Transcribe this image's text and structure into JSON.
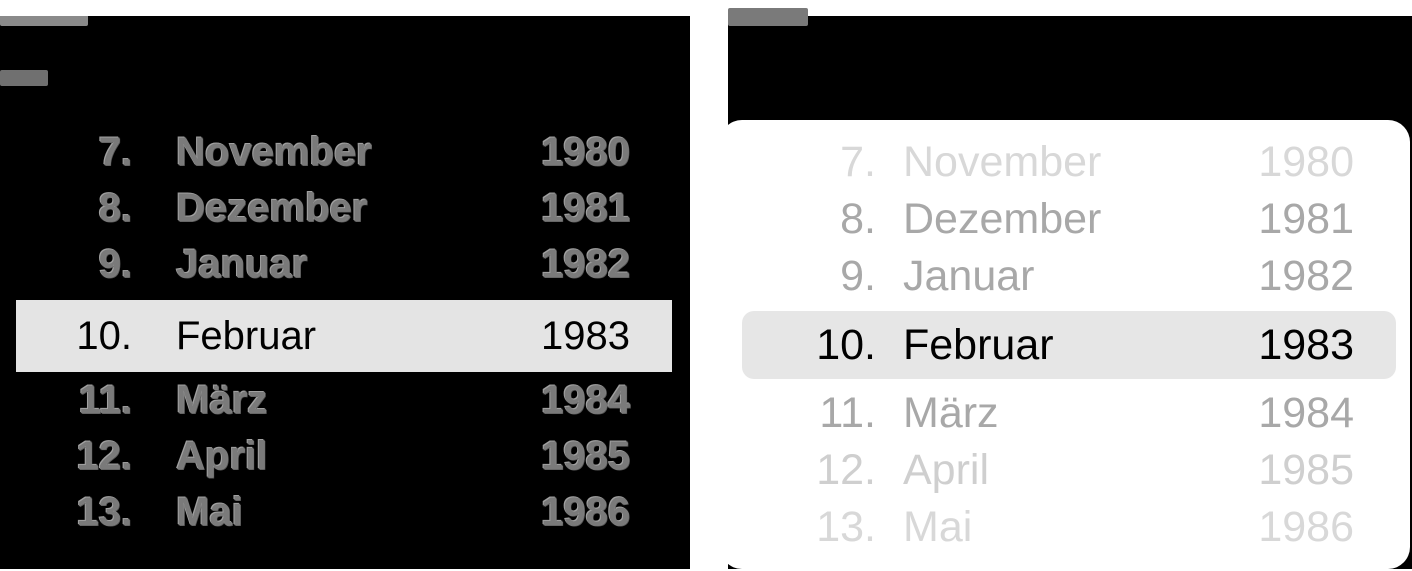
{
  "left_picker": {
    "rows": [
      {
        "day": "7.",
        "month": "November",
        "year": "1980"
      },
      {
        "day": "8.",
        "month": "Dezember",
        "year": "1981"
      },
      {
        "day": "9.",
        "month": "Januar",
        "year": "1982"
      },
      {
        "day": "10.",
        "month": "Februar",
        "year": "1983"
      },
      {
        "day": "11.",
        "month": "März",
        "year": "1984"
      },
      {
        "day": "12.",
        "month": "April",
        "year": "1985"
      },
      {
        "day": "13.",
        "month": "Mai",
        "year": "1986"
      }
    ],
    "selected_index": 3
  },
  "right_picker": {
    "rows": [
      {
        "day": "7.",
        "month": "November",
        "year": "1980"
      },
      {
        "day": "8.",
        "month": "Dezember",
        "year": "1981"
      },
      {
        "day": "9.",
        "month": "Januar",
        "year": "1982"
      },
      {
        "day": "10.",
        "month": "Februar",
        "year": "1983"
      },
      {
        "day": "11.",
        "month": "März",
        "year": "1984"
      },
      {
        "day": "12.",
        "month": "April",
        "year": "1985"
      },
      {
        "day": "13.",
        "month": "Mai",
        "year": "1986"
      }
    ],
    "selected_index": 3
  },
  "colors": {
    "selection_band": "#e4e4e4",
    "dimmed_text": "#a8a8a8",
    "dark_background": "#000000"
  }
}
